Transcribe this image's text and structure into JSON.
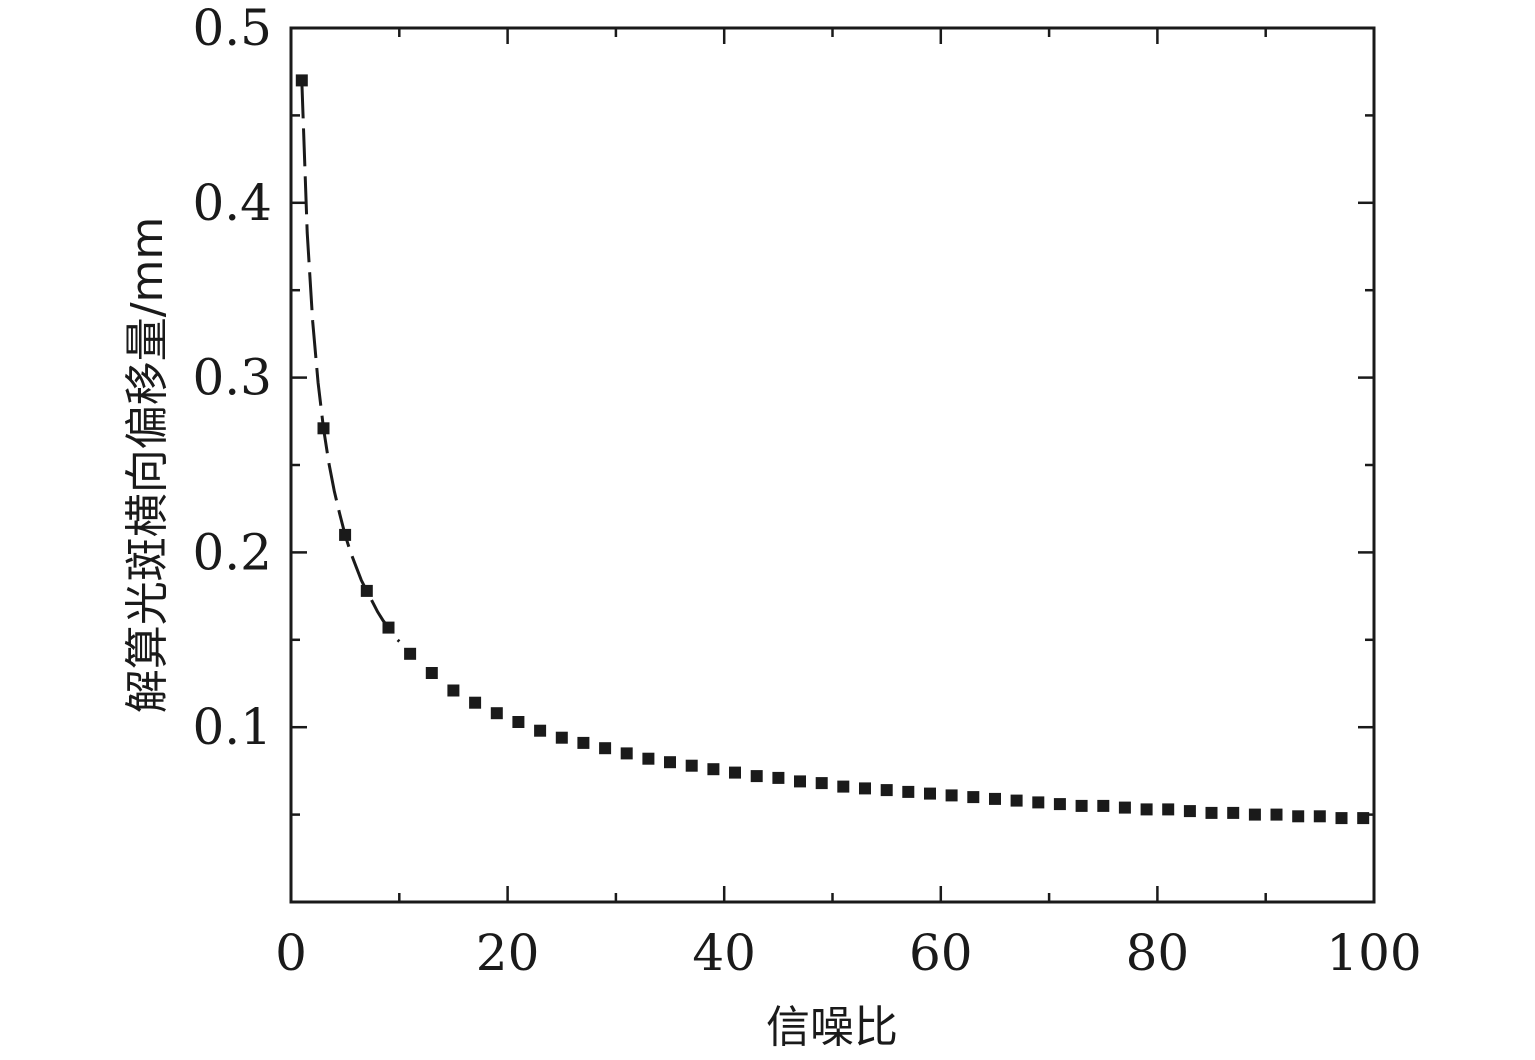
{
  "chart_data": {
    "type": "scatter",
    "title": "",
    "xlabel": "信噪比",
    "ylabel": "解算光斑横向偏移量/mm",
    "xlim": [
      0,
      100
    ],
    "ylim": [
      0,
      0.5
    ],
    "x_ticks": [
      0,
      20,
      40,
      60,
      80,
      100
    ],
    "x_tick_labels": [
      "0",
      "20",
      "40",
      "60",
      "80",
      "100"
    ],
    "y_ticks": [
      0.1,
      0.2,
      0.3,
      0.4,
      0.5
    ],
    "y_tick_labels": [
      "0.1",
      "0.2",
      "0.3",
      "0.4",
      "0.5"
    ],
    "grid": false,
    "legend": "none",
    "series": [
      {
        "style": "square-markers",
        "color": "#1a1a1a",
        "x": [
          1,
          3,
          5,
          7,
          9,
          11,
          13,
          15,
          17,
          19,
          21,
          23,
          25,
          27,
          29,
          31,
          33,
          35,
          37,
          39,
          41,
          43,
          45,
          47,
          49,
          51,
          53,
          55,
          57,
          59,
          61,
          63,
          65,
          67,
          69,
          71,
          73,
          75,
          77,
          79,
          81,
          83,
          85,
          87,
          89,
          91,
          93,
          95,
          97,
          99
        ],
        "y": [
          0.47,
          0.271,
          0.21,
          0.178,
          0.157,
          0.142,
          0.131,
          0.121,
          0.114,
          0.108,
          0.103,
          0.098,
          0.094,
          0.091,
          0.088,
          0.085,
          0.082,
          0.08,
          0.078,
          0.076,
          0.074,
          0.072,
          0.071,
          0.069,
          0.068,
          0.066,
          0.065,
          0.064,
          0.063,
          0.062,
          0.061,
          0.06,
          0.059,
          0.058,
          0.057,
          0.056,
          0.055,
          0.055,
          0.054,
          0.053,
          0.053,
          0.052,
          0.051,
          0.051,
          0.05,
          0.05,
          0.049,
          0.049,
          0.048,
          0.048
        ]
      },
      {
        "style": "dashed-curve",
        "color": "#1a1a1a",
        "x": [
          1,
          1.5,
          2,
          2.5,
          3,
          3.5,
          4,
          4.5,
          5,
          5.5,
          6,
          6.5,
          7,
          7.5,
          8,
          8.5,
          9,
          9.5,
          10
        ],
        "y": [
          0.47,
          0.383,
          0.332,
          0.297,
          0.271,
          0.251,
          0.235,
          0.222,
          0.21,
          0.2,
          0.192,
          0.184,
          0.178,
          0.172,
          0.166,
          0.161,
          0.157,
          0.152,
          0.149
        ]
      }
    ]
  }
}
